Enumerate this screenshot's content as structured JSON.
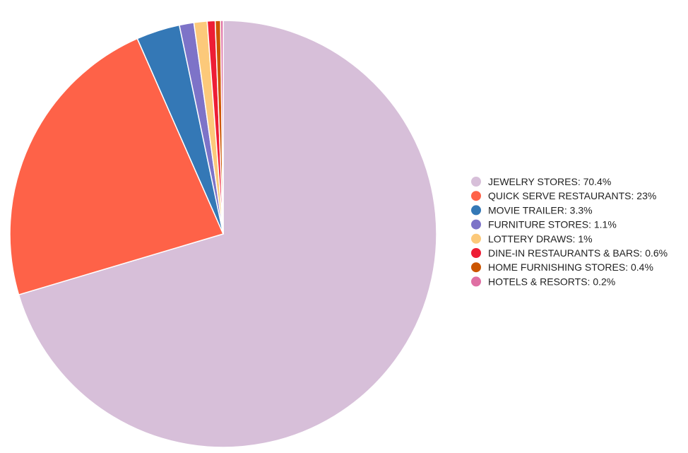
{
  "chart_data": {
    "type": "pie",
    "legend_position": "right",
    "series": [
      {
        "name": "JEWELRY STORES: 70.4%",
        "value": 70.4,
        "color": "#d7bfd9"
      },
      {
        "name": "QUICK SERVE RESTAURANTS: 23%",
        "value": 23.0,
        "color": "#fe6248"
      },
      {
        "name": "MOVIE TRAILER: 3.3%",
        "value": 3.3,
        "color": "#3478b6"
      },
      {
        "name": "FURNITURE STORES: 1.1%",
        "value": 1.1,
        "color": "#7d73c8"
      },
      {
        "name": "LOTTERY DRAWS: 1%",
        "value": 1.0,
        "color": "#fcc97a"
      },
      {
        "name": "DINE-IN RESTAURANTS & BARS: 0.6%",
        "value": 0.6,
        "color": "#ee1d35"
      },
      {
        "name": "HOME FURNISHING STORES: 0.4%",
        "value": 0.4,
        "color": "#cc5500"
      },
      {
        "name": "HOTELS & RESORTS: 0.2%",
        "value": 0.2,
        "color": "#df6fa3"
      }
    ]
  }
}
